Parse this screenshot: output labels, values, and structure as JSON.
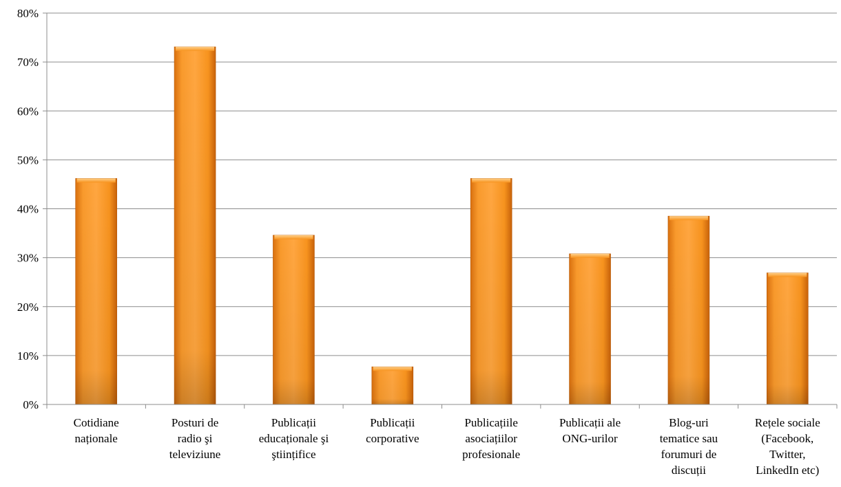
{
  "chart_data": {
    "type": "bar",
    "title": "",
    "xlabel": "",
    "ylabel": "",
    "categories": [
      [
        "Cotidiane",
        "naționale"
      ],
      [
        "Posturi de",
        "radio şi",
        "televiziune"
      ],
      [
        "Publicații",
        "educaționale şi",
        "ştiințifice"
      ],
      [
        "Publicații",
        "corporative"
      ],
      [
        "Publicațiile",
        "asociațiilor",
        "profesionale"
      ],
      [
        "Publicații ale",
        "ONG-urilor"
      ],
      [
        "Blog-uri",
        "tematice sau",
        "forumuri de",
        "discuții"
      ],
      [
        "Rețele sociale",
        "(Facebook,",
        "Twitter,",
        "LinkedIn etc)"
      ]
    ],
    "values": [
      46.2,
      73.1,
      34.6,
      7.7,
      46.2,
      30.8,
      38.5,
      26.9
    ],
    "ylim": [
      0,
      80
    ],
    "yticks": [
      "0%",
      "10%",
      "20%",
      "30%",
      "40%",
      "50%",
      "60%",
      "70%",
      "80%"
    ],
    "grid": true,
    "legend": "none",
    "bar_color": "#f7931e",
    "bar_color_light": "#ffb347",
    "bar_color_dark": "#c8620a"
  }
}
